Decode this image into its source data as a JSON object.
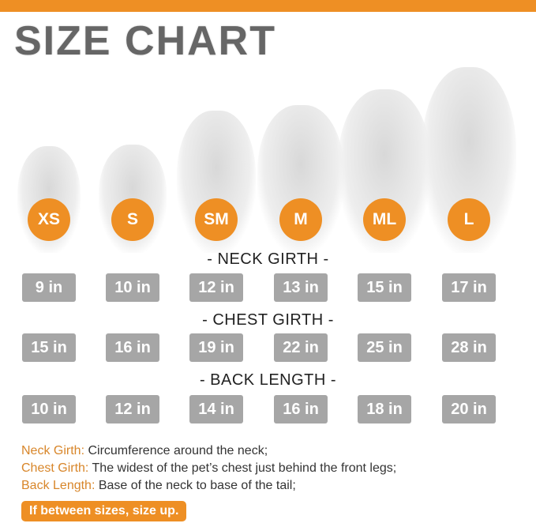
{
  "title": "SIZE CHART",
  "accent_color": "#ee8f24",
  "sizes": [
    "XS",
    "S",
    "SM",
    "M",
    "ML",
    "L"
  ],
  "neck": {
    "heading": "- NECK GIRTH -",
    "values": [
      "9 in",
      "10 in",
      "12 in",
      "13 in",
      "15 in",
      "17 in"
    ]
  },
  "chest": {
    "heading": "- CHEST GIRTH -",
    "values": [
      "15 in",
      "16 in",
      "19 in",
      "22 in",
      "25 in",
      "28 in"
    ]
  },
  "back": {
    "heading": "- BACK LENGTH -",
    "values": [
      "10 in",
      "12 in",
      "14 in",
      "16 in",
      "18 in",
      "20 in"
    ]
  },
  "definitions": [
    {
      "term": "Neck Girth:",
      "text": " Circumference around the neck;"
    },
    {
      "term": "Chest Girth:",
      "text": " The widest of the pet’s chest just behind the front legs;"
    },
    {
      "term": "Back Length:",
      "text": " Base of the neck to base of the tail;"
    }
  ],
  "tip": "If between sizes, size up."
}
